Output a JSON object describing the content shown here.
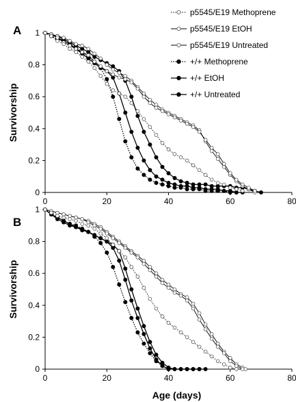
{
  "chart_data": [
    {
      "panel_label": "A",
      "type": "line",
      "xlabel": "",
      "ylabel": "Survivorship",
      "xlim": [
        0,
        80
      ],
      "ylim": [
        0,
        1
      ],
      "xticks": [
        "0",
        "20",
        "40",
        "60",
        "80"
      ],
      "yticks": [
        "0",
        "0.2",
        "0.4",
        "0.6",
        "0.8",
        "1"
      ],
      "legend_position": "top-right",
      "series": [
        {
          "name": "p5545/E19 Methoprene",
          "marker": "open",
          "line": "dotted",
          "x": [
            0,
            2,
            4,
            6,
            8,
            10,
            12,
            14,
            16,
            18,
            20,
            22,
            24,
            26,
            28,
            30,
            32,
            34,
            36,
            38,
            40,
            42,
            44,
            46,
            48,
            50,
            52,
            54,
            56,
            58,
            60,
            62,
            64
          ],
          "y": [
            1,
            0.98,
            0.95,
            0.93,
            0.9,
            0.88,
            0.85,
            0.82,
            0.78,
            0.73,
            0.68,
            0.64,
            0.62,
            0.6,
            0.56,
            0.51,
            0.46,
            0.41,
            0.36,
            0.31,
            0.27,
            0.24,
            0.22,
            0.2,
            0.17,
            0.14,
            0.11,
            0.08,
            0.06,
            0.05,
            0.03,
            0.02,
            0.01
          ]
        },
        {
          "name": "p5545/E19 EtOH",
          "marker": "open",
          "line": "solid",
          "x": [
            0,
            2,
            4,
            6,
            8,
            10,
            12,
            14,
            16,
            18,
            20,
            22,
            24,
            26,
            28,
            30,
            32,
            34,
            36,
            38,
            40,
            42,
            44,
            46,
            48,
            50,
            52,
            54,
            56,
            58,
            60,
            62,
            64,
            66,
            68
          ],
          "y": [
            1,
            0.99,
            0.97,
            0.94,
            0.92,
            0.9,
            0.88,
            0.86,
            0.82,
            0.79,
            0.76,
            0.74,
            0.72,
            0.71,
            0.69,
            0.65,
            0.6,
            0.56,
            0.53,
            0.51,
            0.49,
            0.47,
            0.45,
            0.43,
            0.41,
            0.38,
            0.33,
            0.28,
            0.24,
            0.18,
            0.12,
            0.08,
            0.05,
            0.03,
            0.01
          ]
        },
        {
          "name": "p5545/E19 Untreated",
          "marker": "open",
          "line": "solid",
          "x": [
            0,
            2,
            4,
            6,
            8,
            10,
            12,
            14,
            16,
            18,
            20,
            22,
            24,
            26,
            28,
            30,
            32,
            34,
            36,
            38,
            40,
            42,
            44,
            46,
            48,
            50,
            52,
            54,
            56,
            58,
            60,
            62,
            64,
            66,
            68
          ],
          "y": [
            1,
            0.99,
            0.98,
            0.97,
            0.95,
            0.93,
            0.92,
            0.9,
            0.87,
            0.84,
            0.8,
            0.77,
            0.75,
            0.73,
            0.7,
            0.66,
            0.62,
            0.58,
            0.55,
            0.52,
            0.5,
            0.48,
            0.46,
            0.44,
            0.42,
            0.39,
            0.32,
            0.26,
            0.21,
            0.16,
            0.11,
            0.07,
            0.04,
            0.02,
            0
          ]
        },
        {
          "name": "+/+ Methoprene",
          "marker": "filled",
          "line": "dotted",
          "x": [
            0,
            2,
            4,
            6,
            8,
            10,
            12,
            14,
            16,
            18,
            20,
            22,
            24,
            26,
            28,
            30,
            32,
            34,
            36,
            38,
            40,
            42,
            44,
            46,
            48,
            50,
            52,
            54,
            56,
            58,
            60,
            62
          ],
          "y": [
            1,
            0.98,
            0.96,
            0.95,
            0.93,
            0.91,
            0.88,
            0.85,
            0.82,
            0.78,
            0.71,
            0.6,
            0.46,
            0.32,
            0.22,
            0.15,
            0.11,
            0.08,
            0.06,
            0.05,
            0.04,
            0.03,
            0.03,
            0.02,
            0.02,
            0.02,
            0.01,
            0.01,
            0.01,
            0.01,
            0,
            0
          ]
        },
        {
          "name": "+/+ EtOH",
          "marker": "filled",
          "line": "solid",
          "x": [
            0,
            2,
            4,
            6,
            8,
            10,
            12,
            14,
            16,
            18,
            20,
            22,
            24,
            26,
            28,
            30,
            32,
            34,
            36,
            38,
            40,
            42,
            44,
            46,
            48,
            50,
            52,
            54,
            56,
            58,
            60,
            62,
            64
          ],
          "y": [
            1,
            0.99,
            0.97,
            0.95,
            0.93,
            0.9,
            0.87,
            0.84,
            0.81,
            0.78,
            0.76,
            0.72,
            0.62,
            0.5,
            0.38,
            0.28,
            0.2,
            0.14,
            0.1,
            0.08,
            0.06,
            0.05,
            0.04,
            0.04,
            0.03,
            0.03,
            0.02,
            0.02,
            0.02,
            0.01,
            0.01,
            0,
            0
          ]
        },
        {
          "name": "+/+ Untreated",
          "marker": "filled",
          "line": "solid",
          "x": [
            0,
            2,
            4,
            6,
            8,
            10,
            12,
            14,
            16,
            18,
            20,
            22,
            24,
            26,
            28,
            30,
            32,
            34,
            36,
            38,
            40,
            42,
            44,
            46,
            48,
            50,
            52,
            54,
            56,
            58,
            60,
            62,
            64,
            66,
            68,
            70
          ],
          "y": [
            1,
            0.99,
            0.98,
            0.96,
            0.94,
            0.92,
            0.9,
            0.88,
            0.85,
            0.83,
            0.81,
            0.79,
            0.76,
            0.7,
            0.6,
            0.48,
            0.38,
            0.3,
            0.22,
            0.16,
            0.12,
            0.09,
            0.07,
            0.06,
            0.05,
            0.05,
            0.05,
            0.04,
            0.04,
            0.04,
            0.04,
            0.03,
            0.03,
            0.02,
            0.01,
            0
          ]
        }
      ]
    },
    {
      "panel_label": "B",
      "type": "line",
      "xlabel": "Age (days)",
      "ylabel": "Survivorship",
      "xlim": [
        0,
        80
      ],
      "ylim": [
        0,
        1
      ],
      "xticks": [
        "0",
        "20",
        "40",
        "60",
        "80"
      ],
      "yticks": [
        "0",
        "0.2",
        "0.4",
        "0.6",
        "0.8",
        "1"
      ],
      "series": [
        {
          "name": "p5545/E19 Methoprene",
          "marker": "open",
          "line": "dotted",
          "x": [
            0,
            2,
            4,
            6,
            8,
            10,
            12,
            14,
            16,
            18,
            20,
            22,
            24,
            26,
            28,
            30,
            32,
            34,
            36,
            38,
            40,
            42,
            44,
            46,
            48,
            50,
            52,
            54,
            56,
            58,
            60,
            62
          ],
          "y": [
            1,
            0.98,
            0.96,
            0.95,
            0.94,
            0.93,
            0.91,
            0.9,
            0.88,
            0.85,
            0.82,
            0.78,
            0.74,
            0.7,
            0.64,
            0.58,
            0.51,
            0.44,
            0.38,
            0.33,
            0.29,
            0.26,
            0.23,
            0.2,
            0.17,
            0.14,
            0.11,
            0.08,
            0.05,
            0.03,
            0.01,
            0
          ]
        },
        {
          "name": "p5545/E19 EtOH",
          "marker": "open",
          "line": "solid",
          "x": [
            0,
            2,
            4,
            6,
            8,
            10,
            12,
            14,
            16,
            18,
            20,
            22,
            24,
            26,
            28,
            30,
            32,
            34,
            36,
            38,
            40,
            42,
            44,
            46,
            48,
            50,
            52,
            54,
            56,
            58,
            60,
            62,
            64
          ],
          "y": [
            1,
            0.99,
            0.98,
            0.97,
            0.96,
            0.95,
            0.94,
            0.92,
            0.9,
            0.88,
            0.85,
            0.82,
            0.79,
            0.76,
            0.73,
            0.7,
            0.66,
            0.62,
            0.58,
            0.54,
            0.51,
            0.48,
            0.46,
            0.43,
            0.38,
            0.31,
            0.25,
            0.19,
            0.14,
            0.1,
            0.05,
            0.02,
            0
          ]
        },
        {
          "name": "p5545/E19 Untreated",
          "marker": "open",
          "line": "solid",
          "x": [
            0,
            2,
            4,
            6,
            8,
            10,
            12,
            14,
            16,
            18,
            20,
            22,
            24,
            26,
            28,
            30,
            32,
            34,
            36,
            38,
            40,
            42,
            44,
            46,
            48,
            50,
            52,
            54,
            56,
            58,
            60,
            62,
            64,
            65
          ],
          "y": [
            1,
            0.99,
            0.98,
            0.97,
            0.96,
            0.95,
            0.94,
            0.93,
            0.91,
            0.89,
            0.86,
            0.83,
            0.8,
            0.77,
            0.74,
            0.71,
            0.68,
            0.64,
            0.6,
            0.56,
            0.53,
            0.5,
            0.47,
            0.45,
            0.41,
            0.35,
            0.28,
            0.22,
            0.16,
            0.11,
            0.07,
            0.03,
            0.01,
            0
          ]
        },
        {
          "name": "+/+ Methoprene",
          "marker": "filled",
          "line": "dotted",
          "x": [
            0,
            2,
            4,
            6,
            8,
            10,
            12,
            14,
            16,
            18,
            20,
            22,
            24,
            26,
            28,
            30,
            32,
            34,
            36,
            38,
            40
          ],
          "y": [
            1,
            0.97,
            0.95,
            0.93,
            0.91,
            0.9,
            0.88,
            0.86,
            0.83,
            0.79,
            0.73,
            0.64,
            0.53,
            0.42,
            0.32,
            0.23,
            0.16,
            0.1,
            0.05,
            0.02,
            0
          ]
        },
        {
          "name": "+/+ EtOH",
          "marker": "filled",
          "line": "solid",
          "x": [
            0,
            2,
            4,
            6,
            8,
            10,
            12,
            14,
            16,
            18,
            20,
            22,
            24,
            26,
            28,
            30,
            32,
            34,
            36,
            38,
            40,
            42,
            44,
            46,
            48,
            50
          ],
          "y": [
            1,
            0.97,
            0.94,
            0.92,
            0.9,
            0.89,
            0.87,
            0.86,
            0.84,
            0.82,
            0.8,
            0.78,
            0.74,
            0.63,
            0.5,
            0.38,
            0.27,
            0.17,
            0.09,
            0.04,
            0.01,
            0,
            0,
            0,
            0,
            0
          ]
        },
        {
          "name": "+/+ Untreated",
          "marker": "filled",
          "line": "solid",
          "x": [
            0,
            2,
            4,
            6,
            8,
            10,
            12,
            14,
            16,
            18,
            20,
            22,
            24,
            26,
            28,
            30,
            32,
            34,
            36,
            38,
            40,
            42,
            44,
            46,
            48,
            50,
            52
          ],
          "y": [
            1,
            0.97,
            0.95,
            0.93,
            0.91,
            0.89,
            0.88,
            0.86,
            0.84,
            0.82,
            0.8,
            0.76,
            0.68,
            0.56,
            0.43,
            0.32,
            0.22,
            0.13,
            0.06,
            0.02,
            0,
            0,
            0,
            0,
            0,
            0,
            0
          ]
        }
      ]
    }
  ]
}
